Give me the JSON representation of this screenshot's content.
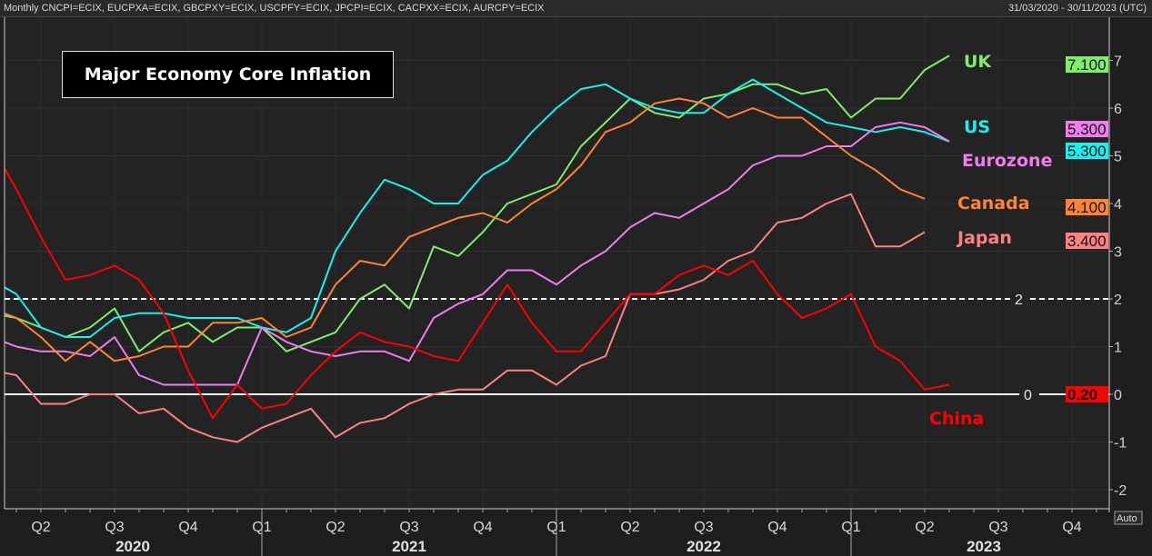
{
  "header": {
    "instruments": "Monthly CNCPI=ECIX, EUCPXA=ECIX, GBCPXY=ECIX, USCPFY=ECIX, JPCPI=ECIX, CACPXX=ECIX, AURCPY=ECIX",
    "date_range": "31/03/2020 - 30/11/2023 (UTC)"
  },
  "auto_label": "Auto",
  "chart_data": {
    "type": "line",
    "title": "Major Economy Core Inflation",
    "frequency": "monthly",
    "x_start": "2020-02",
    "xlim": [
      "2020-03",
      "2023-12"
    ],
    "ylim": [
      -2.3,
      7.7
    ],
    "y_ticks": [
      -2,
      -1,
      0,
      1,
      2,
      3,
      4,
      5,
      6,
      7
    ],
    "x_quarter_labels": [
      "Q2",
      "Q3",
      "Q4",
      "Q1",
      "Q2",
      "Q3",
      "Q4",
      "Q1",
      "Q2",
      "Q3",
      "Q4",
      "Q1",
      "Q2",
      "Q3",
      "Q4"
    ],
    "x_year_labels": [
      "2020",
      "2021",
      "2022",
      "2023"
    ],
    "reference_lines": [
      {
        "value": 2,
        "label": "2",
        "style": "dashed",
        "color": "#ffffff"
      },
      {
        "value": 0,
        "label": "0",
        "style": "solid",
        "color": "#ffffff"
      }
    ],
    "grid": true,
    "series": [
      {
        "name": "UK",
        "color": "#7df06a",
        "last_value_label": "7.100",
        "values": [
          1.7,
          1.6,
          1.4,
          1.2,
          1.4,
          1.8,
          0.9,
          1.3,
          1.5,
          1.1,
          1.4,
          1.4,
          0.9,
          1.1,
          1.3,
          2.0,
          2.3,
          1.8,
          3.1,
          2.9,
          3.4,
          4.0,
          4.2,
          4.4,
          5.2,
          5.7,
          6.2,
          5.9,
          5.8,
          6.2,
          6.3,
          6.5,
          6.5,
          6.3,
          6.4,
          5.8,
          6.2,
          6.2,
          6.8,
          7.1
        ]
      },
      {
        "name": "US",
        "color": "#19f0f0",
        "last_value_label": "5.300",
        "values": [
          2.4,
          2.1,
          1.4,
          1.2,
          1.2,
          1.6,
          1.7,
          1.7,
          1.6,
          1.6,
          1.6,
          1.4,
          1.3,
          1.6,
          3.0,
          3.8,
          4.5,
          4.3,
          4.0,
          4.0,
          4.6,
          4.9,
          5.5,
          6.0,
          6.4,
          6.5,
          6.2,
          6.0,
          5.9,
          5.9,
          6.3,
          6.6,
          6.3,
          6.0,
          5.7,
          5.6,
          5.5,
          5.6,
          5.5,
          5.3
        ]
      },
      {
        "name": "Eurozone",
        "color": "#f07cf0",
        "last_value_label": "5.300",
        "values": [
          1.2,
          1.0,
          0.9,
          0.9,
          0.8,
          1.2,
          0.4,
          0.2,
          0.2,
          0.2,
          0.2,
          1.4,
          1.1,
          0.9,
          0.8,
          0.9,
          0.9,
          0.7,
          1.6,
          1.9,
          2.1,
          2.6,
          2.6,
          2.3,
          2.7,
          3.0,
          3.5,
          3.8,
          3.7,
          4.0,
          4.3,
          4.8,
          5.0,
          5.0,
          5.2,
          5.2,
          5.6,
          5.7,
          5.6,
          5.3
        ]
      },
      {
        "name": "Canada",
        "color": "#ff8235",
        "last_value_label": "4.100",
        "values": [
          1.8,
          1.6,
          1.2,
          0.7,
          1.1,
          0.7,
          0.8,
          1.0,
          1.0,
          1.5,
          1.5,
          1.6,
          1.2,
          1.4,
          2.3,
          2.8,
          2.7,
          3.3,
          3.5,
          3.7,
          3.8,
          3.6,
          4.0,
          4.3,
          4.8,
          5.5,
          5.7,
          6.1,
          6.2,
          6.1,
          5.8,
          6.0,
          5.8,
          5.8,
          5.4,
          5.0,
          4.7,
          4.3,
          4.1
        ]
      },
      {
        "name": "Japan",
        "color": "#ff8080",
        "last_value_label": "3.400",
        "values": [
          0.5,
          0.4,
          -0.2,
          -0.2,
          0.0,
          0.0,
          -0.4,
          -0.3,
          -0.7,
          -0.9,
          -1.0,
          -0.7,
          -0.5,
          -0.3,
          -0.9,
          -0.6,
          -0.5,
          -0.2,
          0.0,
          0.1,
          0.1,
          0.5,
          0.5,
          0.2,
          0.6,
          0.8,
          2.1,
          2.1,
          2.2,
          2.4,
          2.8,
          3.0,
          3.6,
          3.7,
          4.0,
          4.2,
          3.1,
          3.1,
          3.4
        ]
      },
      {
        "name": "China",
        "color": "#ff0000",
        "last_value_label": "0.20",
        "values": [
          5.2,
          4.3,
          3.3,
          2.4,
          2.5,
          2.7,
          2.4,
          1.7,
          0.5,
          -0.5,
          0.2,
          -0.3,
          -0.2,
          0.4,
          0.9,
          1.3,
          1.1,
          1.0,
          0.8,
          0.7,
          1.5,
          2.3,
          1.5,
          0.9,
          0.9,
          1.5,
          2.1,
          2.1,
          2.5,
          2.7,
          2.5,
          2.8,
          2.1,
          1.6,
          1.8,
          2.1,
          1.0,
          0.7,
          0.1,
          0.2
        ]
      }
    ]
  }
}
